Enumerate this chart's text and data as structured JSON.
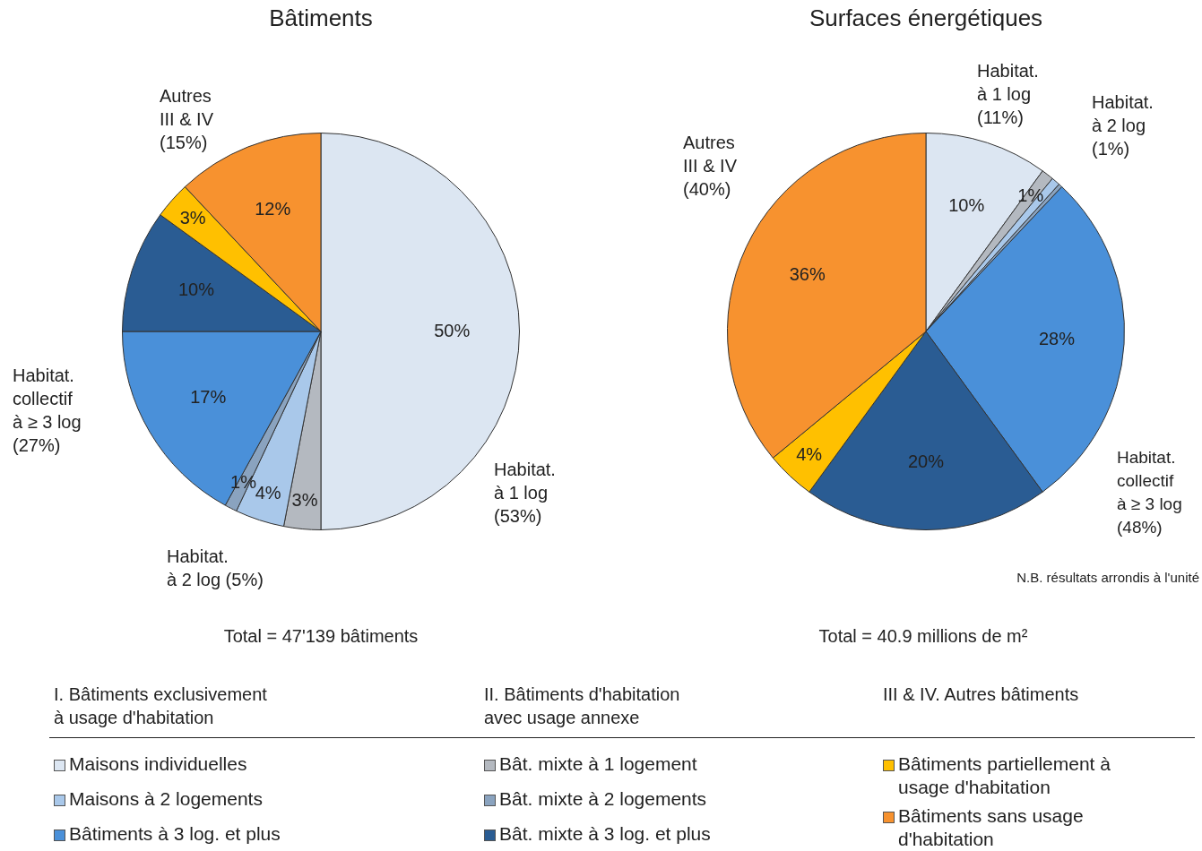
{
  "chart_data": [
    {
      "type": "pie",
      "title": "Bâtiments",
      "categories": [
        "Maisons individuelles",
        "Bât. mixte à 1 logement",
        "Maisons à 2 logements",
        "Bât. mixte à 2 logements",
        "Bâtiments à 3 log. et plus",
        "Bât. mixte à 3 log. et plus",
        "Bâtiments partiellement à usage d'habitation",
        "Bâtiments sans usage d'habitation"
      ],
      "values": [
        50,
        3,
        4,
        1,
        17,
        10,
        3,
        12
      ],
      "value_labels": [
        "50%",
        "3%",
        "4%",
        "1%",
        "17%",
        "10%",
        "3%",
        "12%"
      ],
      "colors": [
        "#dce6f2",
        "#b4b9c0",
        "#a9c8ea",
        "#8aa3bf",
        "#4a90d9",
        "#2a5c93",
        "#ffc000",
        "#f7922f"
      ],
      "legend": "bottom",
      "annotations": [
        "Autres\nIII & IV\n(15%)",
        "Habitat.\ncollectif\nà ≥ 3 log\n(27%)",
        "Habitat.\nà 2 log (5%)",
        "Habitat.\nà 1 log\n(53%)",
        "Total = 47'139 bâtiments",
        "I. Bâtiments exclusivement\nà usage d'habitation",
        "II. Bâtiments d'habitation\navec usage annexe",
        "III & IV. Autres bâtiments"
      ]
    },
    {
      "type": "pie",
      "title": "Surfaces énergétiques",
      "categories": [
        null,
        null,
        null,
        null,
        null,
        null,
        null,
        null
      ],
      "values": [
        10,
        1,
        0.7,
        0.3,
        28,
        20,
        4,
        36
      ],
      "value_labels": [
        "10%",
        "1%",
        null,
        null,
        "28%",
        "20%",
        "4%",
        "36%"
      ],
      "colors": [
        "#dce6f2",
        "#b4b9c0",
        "#a9c8ea",
        "#8aa3bf",
        "#4a90d9",
        "#2a5c93",
        "#ffc000",
        "#f7922f"
      ],
      "annotations": [
        "Habitat.\nà 1 log\n(11%)",
        "Habitat.\nà 2 log\n(1%)",
        "Autres\nIII & IV\n(40%)",
        "Habitat.\ncollectif\nà ≥ 3 log\n(48%)",
        "N.B. résultats arrondis à l'unité",
        "Total = 40.9 millions de m²"
      ]
    }
  ]
}
